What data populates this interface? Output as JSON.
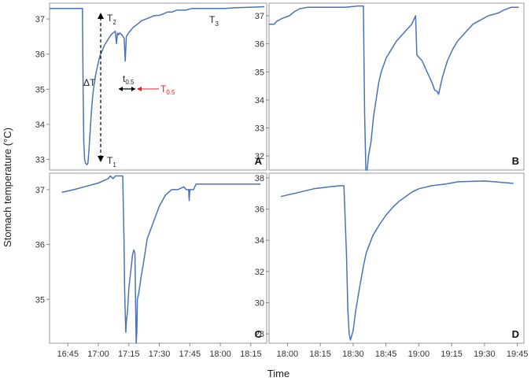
{
  "ylabel": "Stomach temperature (°C)",
  "xlabel": "Time",
  "colors": {
    "series": "#4a72b5",
    "annotation_red": "#e02020",
    "axis": "#999999"
  },
  "annotations": {
    "T2": "T",
    "T2_sub": "2",
    "T1": "T",
    "T1_sub": "1",
    "T3": "T",
    "T3_sub": "3",
    "dT": "ΔT",
    "t05": "t",
    "t05_sub": "0.5",
    "T05": "T",
    "T05_sub": "0.5"
  },
  "chart_data": [
    {
      "panel": "A",
      "type": "line",
      "ylim": [
        32.7,
        37.45
      ],
      "xlim": [
        0,
        99
      ],
      "yticks": [
        33,
        34,
        35,
        36,
        37
      ],
      "xticks": [],
      "xtick_labels": [],
      "series": [
        {
          "x": [
            0,
            15,
            15.3,
            15.6,
            16,
            16.4,
            17,
            17.5,
            18,
            18.5,
            19,
            19.5,
            20,
            21,
            22,
            23,
            24,
            25,
            26,
            27,
            28,
            29,
            30,
            30.5,
            31,
            31.5,
            32,
            33,
            34,
            34.5,
            35,
            36,
            38,
            40,
            42,
            44,
            46,
            48,
            50,
            52,
            54,
            56,
            58,
            60,
            62,
            65,
            68,
            70,
            75,
            80,
            85,
            90,
            95,
            98
          ],
          "y": [
            37.3,
            37.3,
            34.9,
            33.5,
            33.0,
            32.9,
            32.85,
            32.9,
            33.3,
            33.8,
            34.3,
            34.7,
            35.0,
            35.4,
            35.7,
            35.95,
            36.1,
            36.25,
            36.35,
            36.45,
            36.55,
            36.6,
            36.65,
            36.3,
            36.6,
            36.55,
            36.6,
            36.55,
            36.45,
            35.8,
            36.5,
            36.6,
            36.75,
            36.85,
            36.95,
            37.0,
            37.05,
            37.1,
            37.1,
            37.15,
            37.2,
            37.2,
            37.25,
            37.25,
            37.25,
            37.3,
            37.3,
            37.3,
            37.3,
            37.3,
            37.32,
            37.33,
            37.34,
            37.35
          ]
        }
      ]
    },
    {
      "panel": "B",
      "type": "line",
      "ylim": [
        31.5,
        37.45
      ],
      "xlim": [
        0,
        100
      ],
      "yticks": [
        32,
        33,
        34,
        35,
        36,
        37
      ],
      "xticks": [],
      "xtick_labels": [],
      "series": [
        {
          "x": [
            0,
            2,
            3,
            5,
            8,
            10,
            12,
            15,
            18,
            20,
            25,
            30,
            35,
            37,
            37.5,
            38,
            38.5,
            39,
            40,
            41,
            42,
            43,
            44,
            46,
            48,
            50,
            52,
            54,
            55,
            56,
            57,
            57.5,
            58,
            60,
            62,
            64,
            65,
            66,
            66.5,
            67,
            68,
            70,
            72,
            74,
            76,
            78,
            80,
            82,
            84,
            86,
            88,
            90,
            92,
            95,
            98
          ],
          "y": [
            36.7,
            36.7,
            36.8,
            36.9,
            37.0,
            37.15,
            37.25,
            37.3,
            37.3,
            37.3,
            37.3,
            37.3,
            37.35,
            37.35,
            33.5,
            31.5,
            31.5,
            32.0,
            32.5,
            33.4,
            34.0,
            34.6,
            35.0,
            35.5,
            35.8,
            36.1,
            36.3,
            36.5,
            36.6,
            36.7,
            36.9,
            37.0,
            35.6,
            35.4,
            35.0,
            34.6,
            34.35,
            34.3,
            34.2,
            34.4,
            34.8,
            35.4,
            35.8,
            36.1,
            36.3,
            36.5,
            36.7,
            36.8,
            36.9,
            37.0,
            37.05,
            37.1,
            37.2,
            37.3,
            37.3
          ]
        }
      ]
    },
    {
      "panel": "C",
      "type": "line",
      "ylim": [
        34.2,
        37.3
      ],
      "xlim": [
        16.6,
        18.38
      ],
      "yticks": [
        35,
        36,
        37
      ],
      "xticks": [
        16.75,
        17.0,
        17.25,
        17.5,
        17.75,
        18.0,
        18.25
      ],
      "xtick_labels": [
        "16:45",
        "17:00",
        "17:15",
        "17:30",
        "17:45",
        "18:00",
        "18:15"
      ],
      "series": [
        {
          "x": [
            16.7,
            16.8,
            16.9,
            17.0,
            17.05,
            17.08,
            17.1,
            17.12,
            17.14,
            17.2,
            17.21,
            17.215,
            17.22,
            17.225,
            17.23,
            17.24,
            17.25,
            17.26,
            17.27,
            17.28,
            17.29,
            17.3,
            17.305,
            17.31,
            17.315,
            17.32,
            17.33,
            17.35,
            17.38,
            17.4,
            17.45,
            17.5,
            17.55,
            17.6,
            17.65,
            17.7,
            17.72,
            17.74,
            17.745,
            17.75,
            17.78,
            17.8,
            17.9,
            18.0,
            18.1,
            18.2,
            18.33
          ],
          "y": [
            36.95,
            37.0,
            37.06,
            37.12,
            37.17,
            37.2,
            37.25,
            37.2,
            37.25,
            37.25,
            36.1,
            35.2,
            34.8,
            34.4,
            34.6,
            34.8,
            35.2,
            35.4,
            35.6,
            35.8,
            35.9,
            35.85,
            35.0,
            34.2,
            34.4,
            35.0,
            35.1,
            35.4,
            35.8,
            36.1,
            36.4,
            36.7,
            36.9,
            37.0,
            37.0,
            37.05,
            37.0,
            37.0,
            36.8,
            37.0,
            37.0,
            37.1,
            37.1,
            37.1,
            37.1,
            37.1,
            37.1
          ]
        }
      ]
    },
    {
      "panel": "D",
      "type": "line",
      "ylim": [
        27.4,
        38.3
      ],
      "xlim": [
        17.86,
        19.8
      ],
      "yticks": [
        28,
        30,
        32,
        34,
        36,
        38
      ],
      "xticks": [
        18.0,
        18.25,
        18.5,
        18.75,
        19.0,
        19.25,
        19.5,
        19.75
      ],
      "xtick_labels": [
        "18:00",
        "18:15",
        "18:30",
        "18:45",
        "19:00",
        "19:15",
        "19:30",
        "19:45"
      ],
      "series": [
        {
          "x": [
            17.95,
            18.0,
            18.05,
            18.1,
            18.15,
            18.2,
            18.3,
            18.4,
            18.43,
            18.45,
            18.46,
            18.47,
            18.48,
            18.5,
            18.52,
            18.55,
            18.58,
            18.6,
            18.65,
            18.7,
            18.75,
            18.8,
            18.85,
            18.9,
            18.95,
            19.0,
            19.1,
            19.2,
            19.3,
            19.5,
            19.72
          ],
          "y": [
            36.8,
            36.9,
            37.0,
            37.1,
            37.2,
            37.3,
            37.4,
            37.5,
            37.5,
            33.0,
            29.5,
            28.0,
            27.6,
            28.2,
            29.5,
            31.0,
            32.4,
            33.2,
            34.3,
            35.0,
            35.6,
            36.1,
            36.5,
            36.8,
            37.1,
            37.3,
            37.5,
            37.6,
            37.75,
            37.8,
            37.65
          ]
        }
      ]
    }
  ]
}
